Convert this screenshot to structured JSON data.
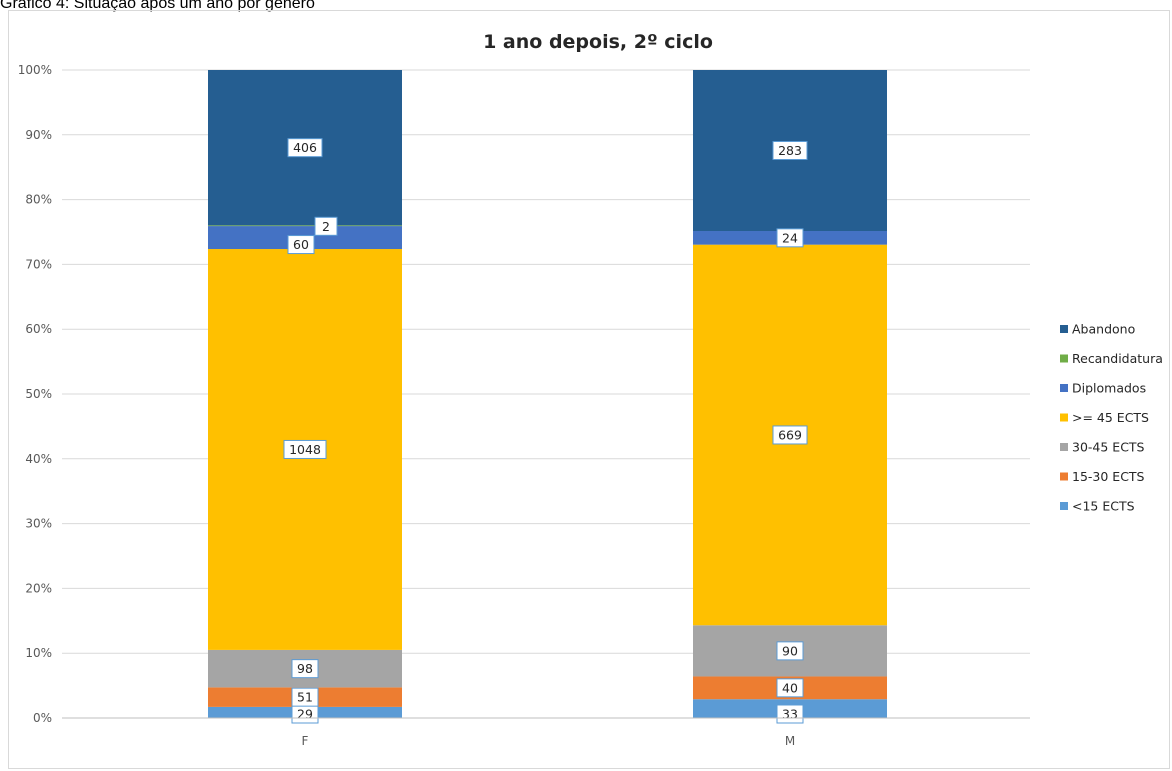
{
  "caption": "Gráfico 4: Situação após um ano por género",
  "chart_data": {
    "type": "bar",
    "stacked": "percent",
    "title": "1 ano depois, 2º ciclo",
    "xlabel": "",
    "ylabel": "",
    "ylim": [
      0,
      100
    ],
    "y_ticks": [
      "0%",
      "10%",
      "20%",
      "30%",
      "40%",
      "50%",
      "60%",
      "70%",
      "80%",
      "90%",
      "100%"
    ],
    "grid": true,
    "legend_position": "right",
    "categories": [
      "F",
      "M"
    ],
    "series": [
      {
        "name": "<15 ECTS",
        "color": "#5b9bd5",
        "values": [
          29,
          33
        ]
      },
      {
        "name": "15-30 ECTS",
        "color": "#ed7d31",
        "values": [
          51,
          40
        ]
      },
      {
        "name": "30-45 ECTS",
        "color": "#a5a5a5",
        "values": [
          98,
          90
        ]
      },
      {
        "name": ">= 45 ECTS",
        "color": "#ffc000",
        "values": [
          1048,
          669
        ]
      },
      {
        "name": "Diplomados",
        "color": "#4472c4",
        "values": [
          60,
          24
        ]
      },
      {
        "name": "Recandidatura",
        "color": "#70ad47",
        "values": [
          2,
          0
        ]
      },
      {
        "name": "Abandono",
        "color": "#255e91",
        "values": [
          406,
          283
        ]
      }
    ],
    "data_labels": [
      {
        "category": "F",
        "series": "<15 ECTS",
        "text": "29"
      },
      {
        "category": "F",
        "series": "15-30 ECTS",
        "text": "51"
      },
      {
        "category": "F",
        "series": "30-45 ECTS",
        "text": "98"
      },
      {
        "category": "F",
        "series": ">= 45 ECTS",
        "text": "1048"
      },
      {
        "category": "F",
        "series": "Diplomados",
        "text": "60"
      },
      {
        "category": "F",
        "series": "Recandidatura",
        "text": "2"
      },
      {
        "category": "F",
        "series": "Abandono",
        "text": "406"
      },
      {
        "category": "M",
        "series": "<15 ECTS",
        "text": "33"
      },
      {
        "category": "M",
        "series": "15-30 ECTS",
        "text": "40"
      },
      {
        "category": "M",
        "series": "30-45 ECTS",
        "text": "90"
      },
      {
        "category": "M",
        "series": ">= 45 ECTS",
        "text": "669"
      },
      {
        "category": "M",
        "series": "Diplomados",
        "text": "24"
      },
      {
        "category": "M",
        "series": "Abandono",
        "text": "283"
      }
    ],
    "legend_order": [
      "Abandono",
      "Recandidatura",
      "Diplomados",
      ">= 45 ECTS",
      "30-45 ECTS",
      "15-30 ECTS",
      "<15 ECTS"
    ]
  }
}
